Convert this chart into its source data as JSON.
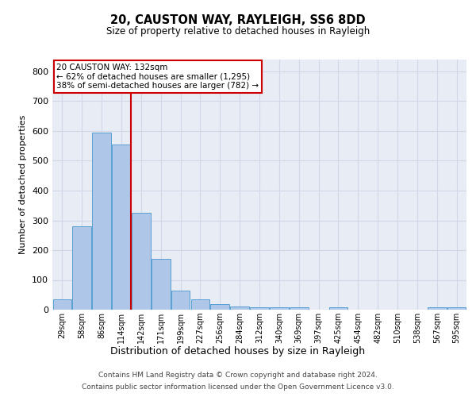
{
  "title1": "20, CAUSTON WAY, RAYLEIGH, SS6 8DD",
  "title2": "Size of property relative to detached houses in Rayleigh",
  "xlabel": "Distribution of detached houses by size in Rayleigh",
  "ylabel": "Number of detached properties",
  "categories": [
    "29sqm",
    "58sqm",
    "86sqm",
    "114sqm",
    "142sqm",
    "171sqm",
    "199sqm",
    "227sqm",
    "256sqm",
    "284sqm",
    "312sqm",
    "340sqm",
    "369sqm",
    "397sqm",
    "425sqm",
    "454sqm",
    "482sqm",
    "510sqm",
    "538sqm",
    "567sqm",
    "595sqm"
  ],
  "values": [
    35,
    280,
    595,
    555,
    325,
    170,
    65,
    35,
    18,
    12,
    8,
    8,
    8,
    0,
    8,
    0,
    0,
    0,
    0,
    8,
    8
  ],
  "property_bin_index": 4,
  "property_label": "20 CAUSTON WAY: 132sqm",
  "annotation_line1": "← 62% of detached houses are smaller (1,295)",
  "annotation_line2": "38% of semi-detached houses are larger (782) →",
  "bar_color": "#aec6e8",
  "bar_edge_color": "#5a9fd4",
  "vline_color": "#cc0000",
  "annotation_box_edge": "#cc0000",
  "grid_color": "#d0d8e8",
  "bg_color": "#e8ecf5",
  "ylim": [
    0,
    840
  ],
  "yticks": [
    0,
    100,
    200,
    300,
    400,
    500,
    600,
    700,
    800
  ],
  "footer1": "Contains HM Land Registry data © Crown copyright and database right 2024.",
  "footer2": "Contains public sector information licensed under the Open Government Licence v3.0."
}
